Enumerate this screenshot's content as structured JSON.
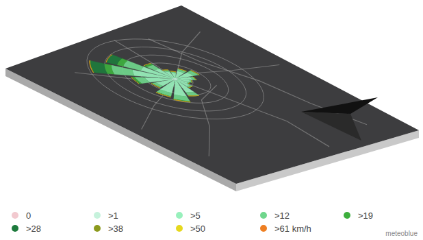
{
  "chart_data": {
    "type": "wind_rose",
    "categories": [
      null,
      null,
      null,
      null,
      null,
      null,
      null,
      null,
      null,
      null,
      null,
      null,
      null,
      null,
      null,
      null
    ],
    "stacked": true,
    "grid": true,
    "tick_labels": false,
    "legend": "bottom",
    "ylim": [
      0,
      500
    ],
    "yticks": [
      100,
      200,
      300,
      400,
      500
    ],
    "watermark": "meteoblue",
    "series": [
      {
        "name": "0",
        "color": "#f2c9cf",
        "values": [
          1,
          1,
          1,
          1,
          1,
          1,
          1,
          1,
          1,
          1,
          1,
          1,
          1,
          1,
          1,
          1
        ]
      },
      {
        "name": ">1",
        "color": "#c6f2dc",
        "values": [
          20,
          15,
          12,
          10,
          12,
          15,
          20,
          25,
          30,
          25,
          20,
          15,
          12,
          10,
          12,
          18
        ]
      },
      {
        "name": ">5",
        "color": "#98f0bc",
        "values": [
          120,
          90,
          70,
          60,
          80,
          150,
          200,
          180,
          120,
          160,
          220,
          180,
          120,
          80,
          70,
          100
        ]
      },
      {
        "name": ">12",
        "color": "#6fd68c",
        "values": [
          40,
          20,
          10,
          8,
          15,
          40,
          60,
          50,
          30,
          60,
          120,
          100,
          50,
          20,
          15,
          30
        ]
      },
      {
        "name": ">19",
        "color": "#3daf3d",
        "values": [
          5,
          2,
          1,
          1,
          2,
          5,
          10,
          8,
          5,
          15,
          40,
          35,
          15,
          3,
          2,
          4
        ]
      },
      {
        "name": ">28",
        "color": "#1d7a3c",
        "values": [
          0,
          0,
          0,
          0,
          0,
          0,
          1,
          1,
          1,
          5,
          80,
          60,
          5,
          0,
          0,
          0
        ]
      },
      {
        "name": ">38",
        "color": "#8c9a1e",
        "values": [
          0,
          0,
          0,
          0,
          0,
          0,
          0,
          0,
          0,
          0,
          3,
          2,
          0,
          0,
          0,
          0
        ]
      },
      {
        "name": ">50",
        "color": "#e6d81e",
        "values": [
          0,
          0,
          0,
          0,
          0,
          0,
          0,
          0,
          0,
          0,
          1,
          0,
          0,
          0,
          0,
          0
        ]
      },
      {
        "name": ">61 km/h",
        "color": "#ee7f22",
        "values": [
          0,
          0,
          0,
          0,
          0,
          0,
          0,
          0,
          0,
          0,
          0,
          0,
          0,
          0,
          0,
          0
        ]
      }
    ]
  }
}
